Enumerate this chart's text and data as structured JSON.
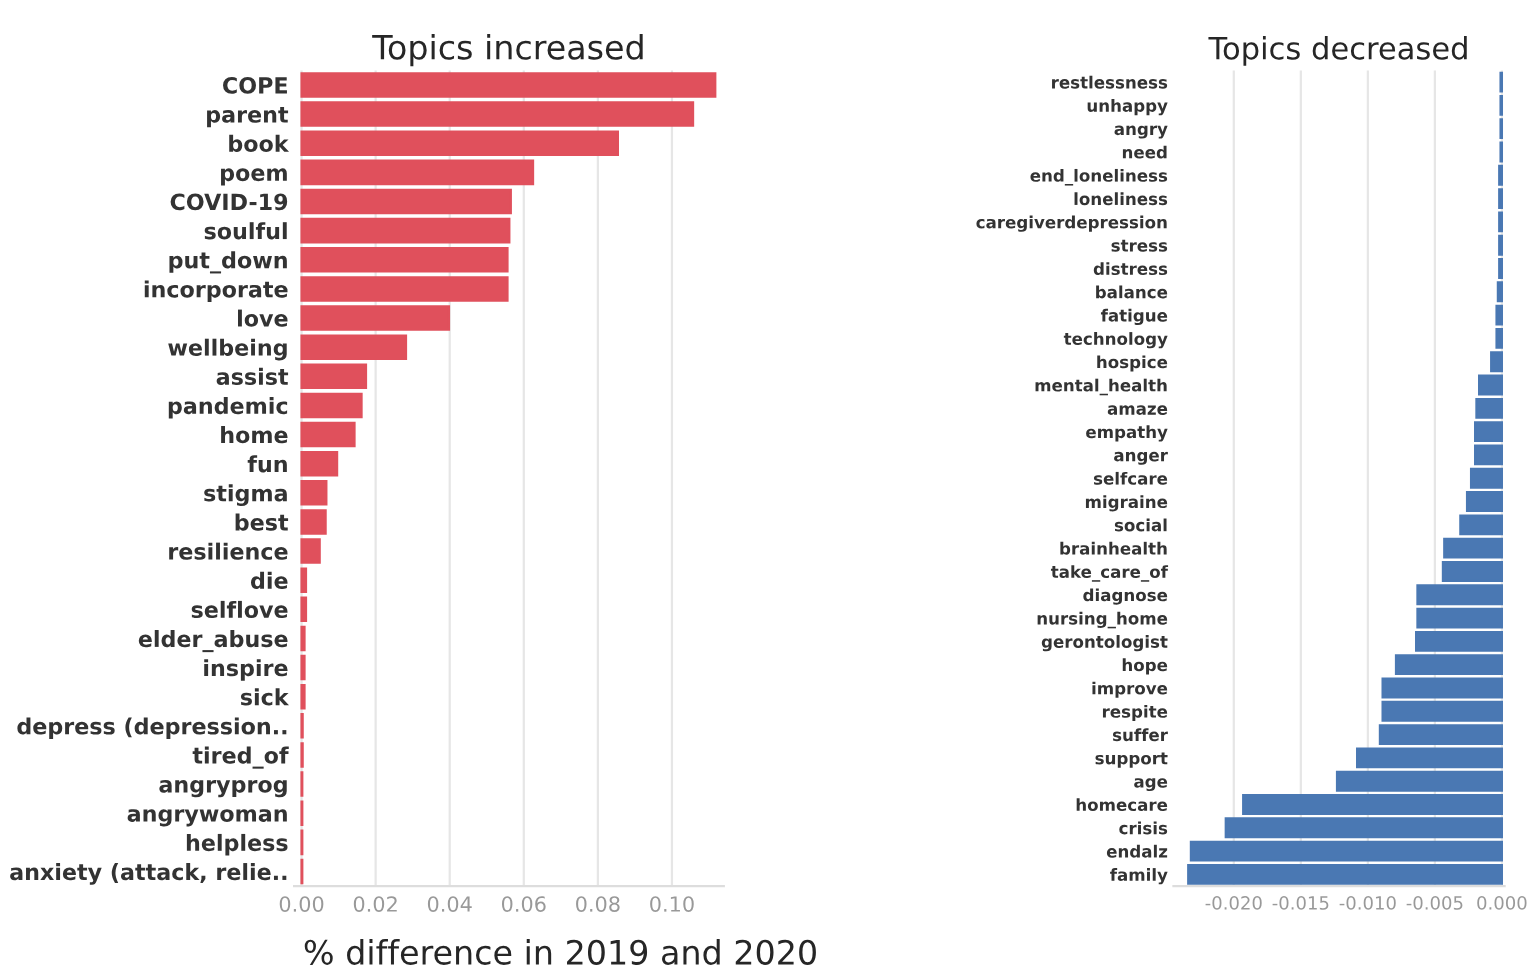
{
  "chart_data": [
    {
      "type": "bar",
      "orientation": "horizontal",
      "title": "Topics increased",
      "xlabel": "% difference in 2019 and 2020",
      "grid": "x",
      "categories": [
        "COPE",
        "parent",
        "book",
        "poem",
        "COVID-19",
        "soulful",
        "put_down",
        "incorporate",
        "love",
        "wellbeing",
        "assist",
        "pandemic",
        "home",
        "fun",
        "stigma",
        "best",
        "resilience",
        "die",
        "selflove",
        "elder_abuse",
        "inspire",
        "sick",
        "depress (depression..",
        "tired_of",
        "angryprog",
        "angrywoman",
        "helpless",
        "anxiety (attack, relie.."
      ],
      "series": [
        {
          "color": "#e0505c",
          "values": [
            0.1117,
            0.1057,
            0.0854,
            0.0625,
            0.0565,
            0.0561,
            0.0556,
            0.0556,
            0.0398,
            0.0282,
            0.0174,
            0.0162,
            0.0143,
            0.0096,
            0.0067,
            0.0065,
            0.0049,
            0.0012,
            0.0012,
            0.0008,
            0.0008,
            0.0008,
            0.0003,
            0.0003,
            0.0002,
            0.0002,
            0.0002,
            0.0002
          ]
        }
      ],
      "xlim": [
        -0.002,
        0.114
      ],
      "xticks": [
        {
          "value": 0.0,
          "label": "0.00"
        },
        0.02,
        0.04,
        0.06,
        0.08,
        {
          "value": 0.1,
          "label": "0.10"
        }
      ]
    },
    {
      "type": "bar",
      "orientation": "horizontal",
      "title": "Topics decreased",
      "grid": "x",
      "categories": [
        "restlessness",
        "unhappy",
        "angry",
        "need",
        "end_loneliness",
        "loneliness",
        "caregiverdepression",
        "stress",
        "distress",
        "balance",
        "fatigue",
        "technology",
        "hospice",
        "mental_health",
        "amaze",
        "empathy",
        "anger",
        "selfcare",
        "migraine",
        "social",
        "brainhealth",
        "take_care_of",
        "diagnose",
        "nursing_home",
        "gerontologist",
        "hope",
        "improve",
        "respite",
        "suffer",
        "support",
        "age",
        "homecare",
        "crisis",
        "endalz",
        "family"
      ],
      "series": [
        {
          "color": "#4a78b3",
          "values": [
            -0.0001,
            -0.0001,
            -0.0001,
            -0.0001,
            -0.0002,
            -0.0002,
            -0.0002,
            -0.0002,
            -0.0002,
            -0.0003,
            -0.0004,
            -0.0004,
            -0.0008,
            -0.0017,
            -0.0019,
            -0.002,
            -0.002,
            -0.0023,
            -0.0026,
            -0.0031,
            -0.0043,
            -0.0044,
            -0.0063,
            -0.0063,
            -0.0064,
            -0.0079,
            -0.0089,
            -0.0089,
            -0.0091,
            -0.0108,
            -0.0123,
            -0.0193,
            -0.0206,
            -0.0232,
            -0.0234
          ]
        }
      ],
      "xlim": [
        -0.0245,
        0.0002
      ],
      "xticks": [
        {
          "value": -0.02,
          "label": "-0.020"
        },
        {
          "value": -0.015,
          "label": "-0.015"
        },
        {
          "value": -0.01,
          "label": "-0.010"
        },
        {
          "value": -0.005,
          "label": "-0.005"
        },
        {
          "value": 0.0,
          "label": "0.000"
        }
      ]
    }
  ]
}
